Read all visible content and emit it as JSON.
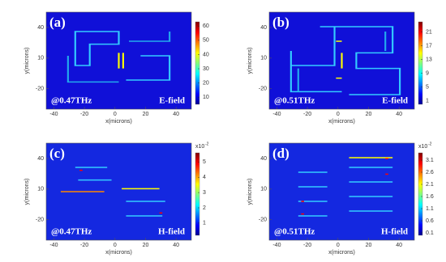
{
  "panels": [
    {
      "label": "(a)",
      "frequency": "@0.47THz",
      "field": "E-field",
      "x_label": "x(microns)",
      "y_label": "y(microns)",
      "xlim": [
        -45,
        50
      ],
      "ylim": [
        -40,
        55
      ],
      "xticks": [
        -40,
        -20,
        0,
        20,
        40
      ],
      "yticks": [
        -20,
        10,
        40
      ],
      "clim": [
        5,
        63
      ],
      "cticks": [
        10,
        20,
        30,
        40,
        50,
        60
      ]
    },
    {
      "label": "(b)",
      "frequency": "@0.51THz",
      "field": "E-field",
      "x_label": "x(microns)",
      "y_label": "y(microns)",
      "xlim": [
        -45,
        50
      ],
      "ylim": [
        -40,
        55
      ],
      "xticks": [
        -40,
        -20,
        0,
        20,
        40
      ],
      "yticks": [
        -20,
        10,
        40
      ],
      "clim": [
        0,
        24
      ],
      "cticks": [
        1,
        5,
        9,
        13,
        17,
        21
      ]
    },
    {
      "label": "(c)",
      "frequency": "@0.47THz",
      "field": "H-field",
      "x_label": "x(microns)",
      "y_label": "y(microns)",
      "xlim": [
        -45,
        50
      ],
      "ylim": [
        -40,
        55
      ],
      "xticks": [
        -40,
        -20,
        0,
        20,
        40
      ],
      "yticks": [
        -20,
        10,
        40
      ],
      "clim": [
        0.2,
        5.6
      ],
      "cticks": [
        1,
        2,
        3,
        4,
        5
      ],
      "cexponent": {
        "base": "x10",
        "power": "-2"
      }
    },
    {
      "label": "(d)",
      "frequency": "@0.51THz",
      "field": "H-field",
      "x_label": "x(microns)",
      "y_label": "y(microns)",
      "xlim": [
        -45,
        50
      ],
      "ylim": [
        -40,
        55
      ],
      "xticks": [
        -40,
        -20,
        0,
        20,
        40
      ],
      "yticks": [
        -20,
        10,
        40
      ],
      "clim": [
        0,
        3.4
      ],
      "cticks": [
        0.1,
        0.6,
        1.1,
        1.6,
        2.1,
        2.6,
        3.1
      ],
      "cexponent": {
        "base": "x10",
        "power": "-2"
      }
    }
  ]
}
